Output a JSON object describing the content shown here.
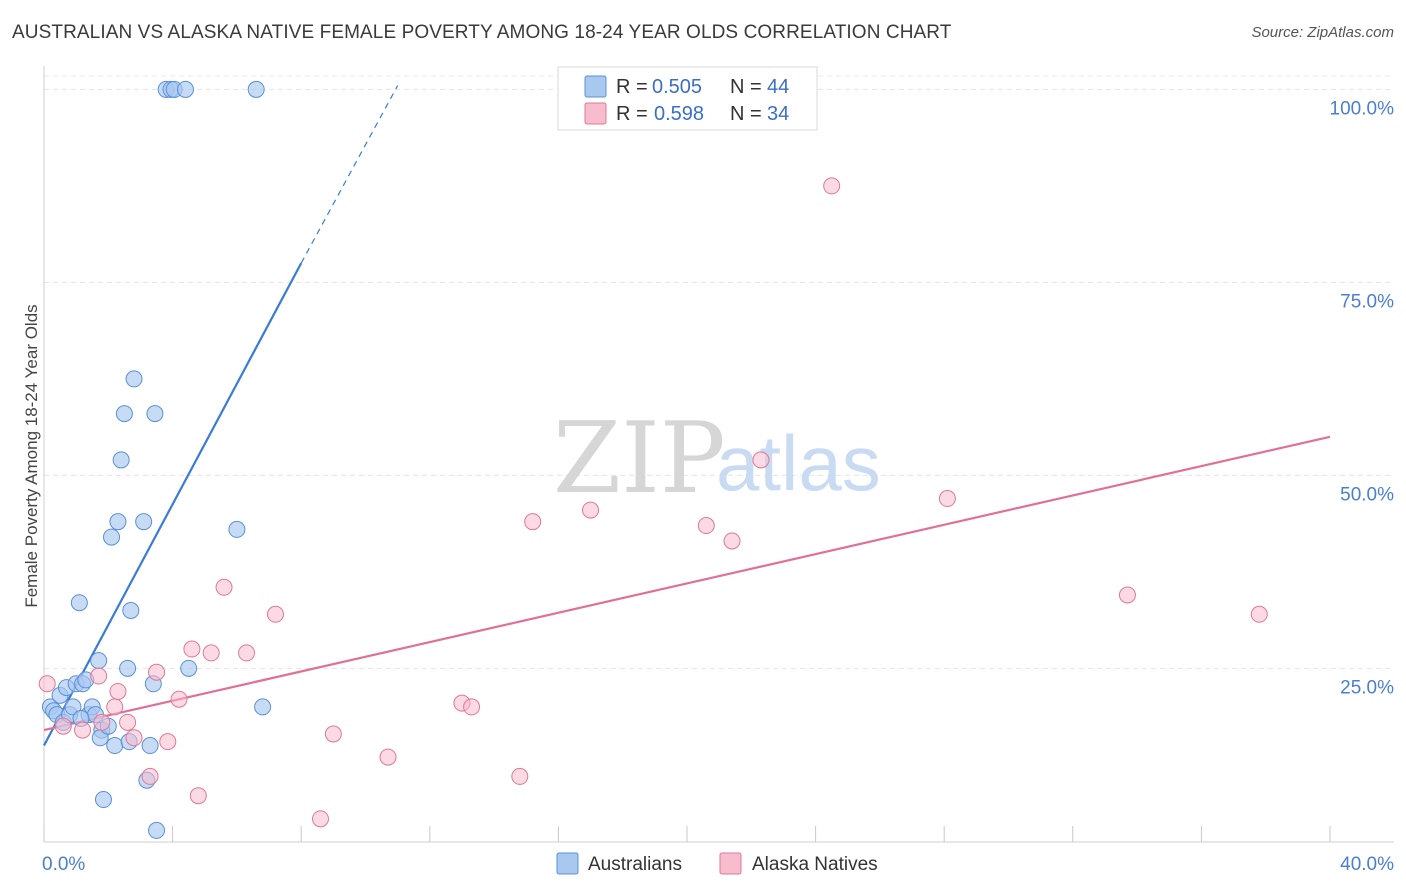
{
  "title": "AUSTRALIAN VS ALASKA NATIVE FEMALE POVERTY AMONG 18-24 YEAR OLDS CORRELATION CHART",
  "source": "Source: ZipAtlas.com",
  "watermark": {
    "zip": "ZIP",
    "atlas": "atlas"
  },
  "legend": {
    "r_label": "R =",
    "n_label": "N =",
    "rows": [
      {
        "name": "Australians",
        "r": "0.505",
        "n": "44",
        "fill": "#a9c8f0",
        "stroke": "#5a90d8"
      },
      {
        "name": "Alaska Natives",
        "r": "0.598",
        "n": "34",
        "fill": "#f7bccd",
        "stroke": "#e07898"
      }
    ]
  },
  "colors": {
    "blue": "#3a7bd5",
    "pink": "#e07098",
    "blue_fill": "#a9c8f0",
    "pink_fill": "#f7bccd",
    "accent_text": "#3a6fc8"
  },
  "chart_data": {
    "type": "scatter",
    "xlabel": "",
    "ylabel": "Female Poverty Among 18-24 Year Olds",
    "xlim": [
      0,
      40
    ],
    "ylim": [
      2.5,
      102
    ],
    "x_tick_labels": [
      {
        "v": 0,
        "t": "0.0%"
      },
      {
        "v": 40,
        "t": "40.0%"
      }
    ],
    "y_tick_labels": [
      {
        "v": 100,
        "t": "100.0%"
      },
      {
        "v": 75,
        "t": "75.0%"
      },
      {
        "v": 50,
        "t": "50.0%"
      },
      {
        "v": 25,
        "t": "25.0%"
      }
    ],
    "x_minor_ticks": [
      0,
      4,
      8,
      12,
      16,
      20,
      24,
      28,
      32,
      36,
      40
    ],
    "series": [
      {
        "name": "Australians",
        "points": [
          [
            0.2,
            20.0
          ],
          [
            0.3,
            19.5
          ],
          [
            0.4,
            19.0
          ],
          [
            0.5,
            21.5
          ],
          [
            0.6,
            18.0
          ],
          [
            0.7,
            22.5
          ],
          [
            0.8,
            19.0
          ],
          [
            0.9,
            20.0
          ],
          [
            1.0,
            23.0
          ],
          [
            1.1,
            33.5
          ],
          [
            1.2,
            23.0
          ],
          [
            1.3,
            23.5
          ],
          [
            1.4,
            19.0
          ],
          [
            1.5,
            20.0
          ],
          [
            1.6,
            19.0
          ],
          [
            1.7,
            26.0
          ],
          [
            1.8,
            17.0
          ],
          [
            1.75,
            16.0
          ],
          [
            2.0,
            17.5
          ],
          [
            2.2,
            15.0
          ],
          [
            2.1,
            42.0
          ],
          [
            2.3,
            44.0
          ],
          [
            2.4,
            52.0
          ],
          [
            2.5,
            58.0
          ],
          [
            2.6,
            25.0
          ],
          [
            2.7,
            32.5
          ],
          [
            2.65,
            15.5
          ],
          [
            2.8,
            62.5
          ],
          [
            3.1,
            44.0
          ],
          [
            3.2,
            10.5
          ],
          [
            3.3,
            15.0
          ],
          [
            3.4,
            23.0
          ],
          [
            3.45,
            58.0
          ],
          [
            3.5,
            4.0
          ],
          [
            1.85,
            8.0
          ],
          [
            3.8,
            100.0
          ],
          [
            3.95,
            100.0
          ],
          [
            4.05,
            100.0
          ],
          [
            4.4,
            100.0
          ],
          [
            4.5,
            25.0
          ],
          [
            6.0,
            43.0
          ],
          [
            6.6,
            100.0
          ],
          [
            6.8,
            20.0
          ],
          [
            1.15,
            18.5
          ]
        ]
      },
      {
        "name": "Alaska Natives",
        "points": [
          [
            0.1,
            23.0
          ],
          [
            0.6,
            17.5
          ],
          [
            1.2,
            17.0
          ],
          [
            1.7,
            24.0
          ],
          [
            2.2,
            20.0
          ],
          [
            2.3,
            22.0
          ],
          [
            2.6,
            18.0
          ],
          [
            2.8,
            16.0
          ],
          [
            3.3,
            11.0
          ],
          [
            3.5,
            24.5
          ],
          [
            3.85,
            15.5
          ],
          [
            4.2,
            21.0
          ],
          [
            4.6,
            27.5
          ],
          [
            4.8,
            8.5
          ],
          [
            5.2,
            27.0
          ],
          [
            5.6,
            35.5
          ],
          [
            6.3,
            27.0
          ],
          [
            7.2,
            32.0
          ],
          [
            8.6,
            5.5
          ],
          [
            9.0,
            16.5
          ],
          [
            10.7,
            13.5
          ],
          [
            13.0,
            20.5
          ],
          [
            13.3,
            20.0
          ],
          [
            14.8,
            11.0
          ],
          [
            15.2,
            44.0
          ],
          [
            17.0,
            45.5
          ],
          [
            20.6,
            43.5
          ],
          [
            21.4,
            41.5
          ],
          [
            22.3,
            52.0
          ],
          [
            24.5,
            87.5
          ],
          [
            28.1,
            47.0
          ],
          [
            33.7,
            34.5
          ],
          [
            37.8,
            32.0
          ],
          [
            1.8,
            18.0
          ]
        ]
      }
    ],
    "trend_lines": [
      {
        "name": "Australians",
        "x1": 0.0,
        "y1": 15.0,
        "x2": 8.0,
        "y2": 77.5,
        "dash_to_x": 11.0,
        "dash_to_y": 100.5
      },
      {
        "name": "Alaska Natives",
        "x1": 0.0,
        "y1": 17.0,
        "x2": 40.0,
        "y2": 55.0
      }
    ]
  }
}
